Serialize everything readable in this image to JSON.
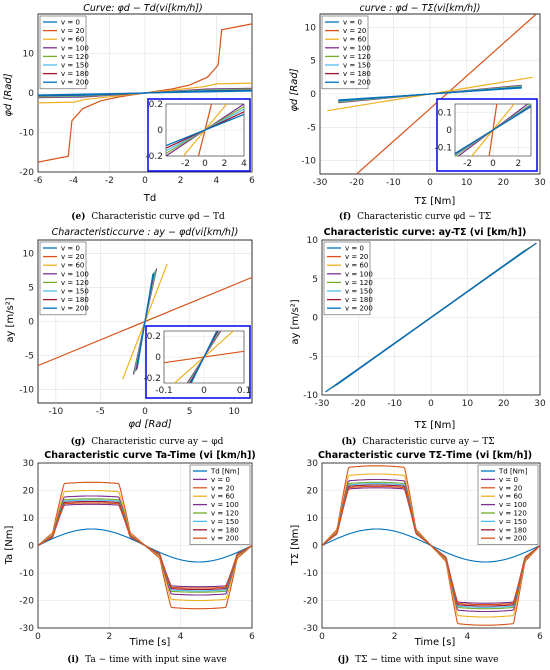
{
  "charts": [
    {
      "id": "e",
      "title": "Curve: φd − Td(vi[km/h])",
      "title_style": "italic",
      "xlabel": "Td",
      "xlabel_sub": "d",
      "ylabel": "φd [Rad]",
      "xlim": [
        -6,
        6
      ],
      "ylim": [
        -20,
        20
      ],
      "xticks": [
        -6,
        -4,
        -2,
        0,
        2,
        4,
        6
      ],
      "yticks": [
        -20,
        -10,
        0,
        10
      ],
      "caption_label": "(e)",
      "caption": "Characteristic curve φd − Td",
      "legend": [
        "v = 0",
        "v = 20",
        "v = 60",
        "v = 100",
        "v = 120",
        "v = 150",
        "v = 180",
        "v = 200"
      ]
    },
    {
      "id": "f",
      "title": "curve : φd − TΣ(vi[km/h])",
      "title_style": "italic",
      "xlabel": "TΣ [Nm]",
      "ylabel": "φd [Rad]",
      "xlim": [
        -30,
        30
      ],
      "ylim": [
        -12,
        12
      ],
      "xticks": [
        -30,
        -20,
        -10,
        0,
        10,
        20,
        30
      ],
      "yticks": [
        -10,
        -5,
        0,
        5,
        10
      ],
      "caption_label": "(f)",
      "caption": "Characteristic curve φd − TΣ",
      "legend": [
        "v = 0",
        "v = 20",
        "v = 60",
        "v = 100",
        "v = 120",
        "v = 150",
        "v = 180",
        "v = 200"
      ]
    },
    {
      "id": "g",
      "title": "Characteristiccurve : ay − φd(vi[km/h])",
      "title_style": "italic",
      "xlabel": "φd [Rad]",
      "ylabel": "ay [m/s²]",
      "xlim": [
        -12,
        12
      ],
      "ylim": [
        -12,
        12
      ],
      "xticks": [
        -10,
        -5,
        0,
        5,
        10
      ],
      "yticks": [
        -10,
        -5,
        0,
        5,
        10
      ],
      "caption_label": "(g)",
      "caption": "Characteristic curve ay − φd",
      "legend": [
        "v = 0",
        "v = 20",
        "v = 60",
        "v = 100",
        "v = 120",
        "v = 150",
        "v = 180",
        "v = 200"
      ]
    },
    {
      "id": "h",
      "title": "Characteristic curve: ay-TΣ (vi [km/h])",
      "title_style": "bold",
      "xlabel": "TΣ [Nm]",
      "ylabel": "ay [m/s²]",
      "xlim": [
        -30,
        30
      ],
      "ylim": [
        -10,
        10
      ],
      "xticks": [
        -30,
        -20,
        -10,
        0,
        10,
        20,
        30
      ],
      "yticks": [
        -10,
        -5,
        0,
        5,
        10
      ],
      "caption_label": "(h)",
      "caption": "Characteristic curve ay − TΣ",
      "legend": [
        "v = 0",
        "v = 20",
        "v = 60",
        "v = 100",
        "v = 120",
        "v = 150",
        "v = 180",
        "v = 200"
      ]
    },
    {
      "id": "i",
      "title": "Characteristic curve Ta-Time (vi [km/h])",
      "title_style": "bold",
      "xlabel": "Time [s]",
      "ylabel": "Ta [Nm]",
      "xlim": [
        0,
        6
      ],
      "ylim": [
        -30,
        30
      ],
      "xticks": [
        0,
        2,
        4,
        6
      ],
      "yticks": [
        -30,
        -20,
        -10,
        0,
        10,
        20,
        30
      ],
      "caption_label": "(i)",
      "caption": "Ta − time with input sine wave",
      "legend": [
        "Td [Nm]",
        "v = 0",
        "v = 20",
        "v = 60",
        "v = 100",
        "v = 120",
        "v = 150",
        "v = 180",
        "v = 200"
      ]
    },
    {
      "id": "j",
      "title": "Characteristic curve TΣ-Time (vi [km/h])",
      "title_style": "bold",
      "xlabel": "Time [s]",
      "ylabel": "TΣ [Nm]",
      "xlim": [
        0,
        6
      ],
      "ylim": [
        -30,
        30
      ],
      "xticks": [
        0,
        2,
        4,
        6
      ],
      "yticks": [
        -30,
        -20,
        -10,
        0,
        10,
        20,
        30
      ],
      "caption_label": "(j)",
      "caption": "TΣ − time with input sine wave",
      "legend": [
        "Td [Nm]",
        "v = 0",
        "v = 20",
        "v = 60",
        "v = 100",
        "v = 120",
        "v = 150",
        "v = 180",
        "v = 200"
      ]
    }
  ],
  "colors": [
    "#0072BD",
    "#D95319",
    "#EDB120",
    "#7E2F8E",
    "#77AC30",
    "#4DBEEE",
    "#A2142F",
    "#0072BD"
  ],
  "inset_border": "#1010ee",
  "chart_data": [
    {
      "type": "line",
      "title": "Curve: φd − Td(vi[km/h])",
      "xlabel": "Td",
      "ylabel": "φd [Rad]",
      "xlim": [
        -6,
        6
      ],
      "ylim": [
        -20,
        20
      ],
      "grid": true,
      "legend": "top-left",
      "series": [
        {
          "name": "v = 0",
          "x": [
            -6,
            6
          ],
          "y": [
            -0.5,
            0.5
          ]
        },
        {
          "name": "v = 20",
          "x": [
            -6,
            -4.3,
            -4.1,
            -3.5,
            -2.5,
            -1.5,
            0,
            1.5,
            2.5,
            3.5,
            4.1,
            4.3,
            6
          ],
          "y": [
            -17.5,
            -16,
            -7,
            -4,
            -2,
            -1,
            0,
            1,
            2,
            4,
            7,
            16,
            17.5
          ]
        },
        {
          "name": "v = 60",
          "x": [
            -6,
            -4,
            -3.3,
            0,
            3.3,
            4,
            6
          ],
          "y": [
            -2.5,
            -2.3,
            -1.6,
            0,
            1.6,
            2.3,
            2.5
          ]
        },
        {
          "name": "v = 100",
          "x": [
            -6,
            -3.5,
            0,
            3.5,
            6
          ],
          "y": [
            -1.2,
            -1,
            0,
            1,
            1.2
          ]
        },
        {
          "name": "v = 120",
          "x": [
            -6,
            -3.5,
            0,
            3.5,
            6
          ],
          "y": [
            -1,
            -0.8,
            0,
            0.8,
            1
          ]
        },
        {
          "name": "v = 150",
          "x": [
            -6,
            -3.5,
            0,
            3.5,
            6
          ],
          "y": [
            -0.8,
            -0.65,
            0,
            0.65,
            0.8
          ]
        },
        {
          "name": "v = 180",
          "x": [
            -6,
            -3.5,
            0,
            3.5,
            6
          ],
          "y": [
            -0.7,
            -0.55,
            0,
            0.55,
            0.7
          ]
        },
        {
          "name": "v = 200",
          "x": [
            -6,
            -3.5,
            0,
            3.5,
            6
          ],
          "y": [
            -0.6,
            -0.5,
            0,
            0.5,
            0.6
          ]
        }
      ],
      "inset": {
        "xlim": [
          -4,
          4
        ],
        "ylim": [
          -0.2,
          0.2
        ],
        "xticks": [
          -2,
          0,
          2,
          4
        ],
        "yticks": [
          -0.2,
          0,
          0.2
        ]
      }
    },
    {
      "type": "line",
      "title": "curve : φd − TΣ(vi[km/h])",
      "xlabel": "TΣ [Nm]",
      "ylabel": "φd [Rad]",
      "xlim": [
        -30,
        30
      ],
      "ylim": [
        -12,
        12
      ],
      "grid": true,
      "legend": "top-left",
      "series": [
        {
          "name": "v = 0",
          "x": [
            -25,
            25
          ],
          "y": [
            -1,
            1
          ]
        },
        {
          "name": "v = 20",
          "x": [
            -20,
            29
          ],
          "y": [
            -12,
            12
          ]
        },
        {
          "name": "v = 60",
          "x": [
            -28,
            28
          ],
          "y": [
            -2.5,
            2.5
          ]
        },
        {
          "name": "v = 100",
          "x": [
            -25,
            25
          ],
          "y": [
            -1.3,
            1.3
          ]
        },
        {
          "name": "v = 120",
          "x": [
            -25,
            25
          ],
          "y": [
            -1.2,
            1.2
          ]
        },
        {
          "name": "v = 150",
          "x": [
            -25,
            25
          ],
          "y": [
            -1.1,
            1.1
          ]
        },
        {
          "name": "v = 180",
          "x": [
            -25,
            25
          ],
          "y": [
            -1.0,
            1.0
          ]
        },
        {
          "name": "v = 200",
          "x": [
            -25,
            25
          ],
          "y": [
            -0.9,
            0.9
          ]
        }
      ],
      "inset": {
        "xlim": [
          -3,
          3
        ],
        "ylim": [
          -0.15,
          0.15
        ],
        "xticks": [
          -2,
          0,
          2
        ],
        "yticks": [
          -0.1,
          0,
          0.1
        ]
      }
    },
    {
      "type": "line",
      "title": "Characteristiccurve : ay − φd(vi[km/h])",
      "xlabel": "φd [Rad]",
      "ylabel": "ay [m/s²]",
      "xlim": [
        -12,
        12
      ],
      "ylim": [
        -12,
        12
      ],
      "grid": true,
      "legend": "top-left",
      "series": [
        {
          "name": "v = 0",
          "x": [
            -0.9,
            0.9
          ],
          "y": [
            -7,
            7
          ]
        },
        {
          "name": "v = 20",
          "x": [
            -12,
            12
          ],
          "y": [
            -6.5,
            6.5
          ]
        },
        {
          "name": "v = 60",
          "x": [
            -2.5,
            2.5
          ],
          "y": [
            -8.5,
            8.5
          ]
        },
        {
          "name": "v = 100",
          "x": [
            -1.3,
            1.3
          ],
          "y": [
            -7.8,
            7.8
          ]
        },
        {
          "name": "v = 120",
          "x": [
            -1.2,
            1.2
          ],
          "y": [
            -7.6,
            7.6
          ]
        },
        {
          "name": "v = 150",
          "x": [
            -1.1,
            1.1
          ],
          "y": [
            -7.4,
            7.4
          ]
        },
        {
          "name": "v = 180",
          "x": [
            -1.0,
            1.0
          ],
          "y": [
            -7.2,
            7.2
          ]
        },
        {
          "name": "v = 200",
          "x": [
            -0.9,
            0.9
          ],
          "y": [
            -7,
            7
          ]
        }
      ],
      "inset": {
        "xlim": [
          -0.1,
          0.1
        ],
        "ylim": [
          -0.25,
          0.25
        ],
        "xticks": [
          -0.1,
          0,
          0.1
        ],
        "yticks": [
          -0.2,
          0,
          0.2
        ]
      }
    },
    {
      "type": "line",
      "title": "Characteristic curve: ay-TΣ (vi [km/h])",
      "xlabel": "TΣ [Nm]",
      "ylabel": "ay [m/s²]",
      "xlim": [
        -30,
        30
      ],
      "ylim": [
        -10,
        10
      ],
      "grid": true,
      "legend": "top-left",
      "series": [
        {
          "name": "v = 0",
          "x": [
            -29,
            29
          ],
          "y": [
            -9.6,
            9.6
          ]
        },
        {
          "name": "v = 20",
          "x": [
            -29,
            29
          ],
          "y": [
            -9.6,
            9.6
          ]
        },
        {
          "name": "v = 60",
          "x": [
            -28,
            28
          ],
          "y": [
            -9.3,
            9.3
          ]
        },
        {
          "name": "v = 100",
          "x": [
            -27,
            27
          ],
          "y": [
            -9.0,
            9.0
          ]
        },
        {
          "name": "v = 120",
          "x": [
            -27,
            27
          ],
          "y": [
            -9.0,
            9.0
          ]
        },
        {
          "name": "v = 150",
          "x": [
            -26,
            26
          ],
          "y": [
            -8.7,
            8.7
          ]
        },
        {
          "name": "v = 180",
          "x": [
            -26,
            26
          ],
          "y": [
            -8.7,
            8.7
          ]
        },
        {
          "name": "v = 200",
          "x": [
            -26,
            26
          ],
          "y": [
            -8.7,
            8.7
          ]
        }
      ]
    },
    {
      "type": "line",
      "title": "Characteristic curve Ta-Time (vi [km/h])",
      "xlabel": "Time [s]",
      "ylabel": "Ta [Nm]",
      "xlim": [
        0,
        6
      ],
      "ylim": [
        -30,
        30
      ],
      "grid": true,
      "legend": "top-right",
      "series": [
        {
          "name": "Td [Nm]",
          "amplitude": 6
        },
        {
          "name": "v = 0",
          "plateau": 15
        },
        {
          "name": "v = 20",
          "plateau": 23
        },
        {
          "name": "v = 60",
          "plateau": 20
        },
        {
          "name": "v = 100",
          "plateau": 18
        },
        {
          "name": "v = 120",
          "plateau": 17
        },
        {
          "name": "v = 150",
          "plateau": 16.5
        },
        {
          "name": "v = 180",
          "plateau": 16
        },
        {
          "name": "v = 200",
          "plateau": 15.5
        }
      ]
    },
    {
      "type": "line",
      "title": "Characteristic curve TΣ-Time (vi [km/h])",
      "xlabel": "Time [s]",
      "ylabel": "TΣ [Nm]",
      "xlim": [
        0,
        6
      ],
      "ylim": [
        -30,
        30
      ],
      "grid": true,
      "legend": "top-right",
      "series": [
        {
          "name": "Td [Nm]",
          "amplitude": 6
        },
        {
          "name": "v = 0",
          "plateau": 21
        },
        {
          "name": "v = 20",
          "plateau": 29
        },
        {
          "name": "v = 60",
          "plateau": 26
        },
        {
          "name": "v = 100",
          "plateau": 24
        },
        {
          "name": "v = 120",
          "plateau": 23
        },
        {
          "name": "v = 150",
          "plateau": 22.5
        },
        {
          "name": "v = 180",
          "plateau": 22
        },
        {
          "name": "v = 200",
          "plateau": 21.5
        }
      ]
    }
  ]
}
